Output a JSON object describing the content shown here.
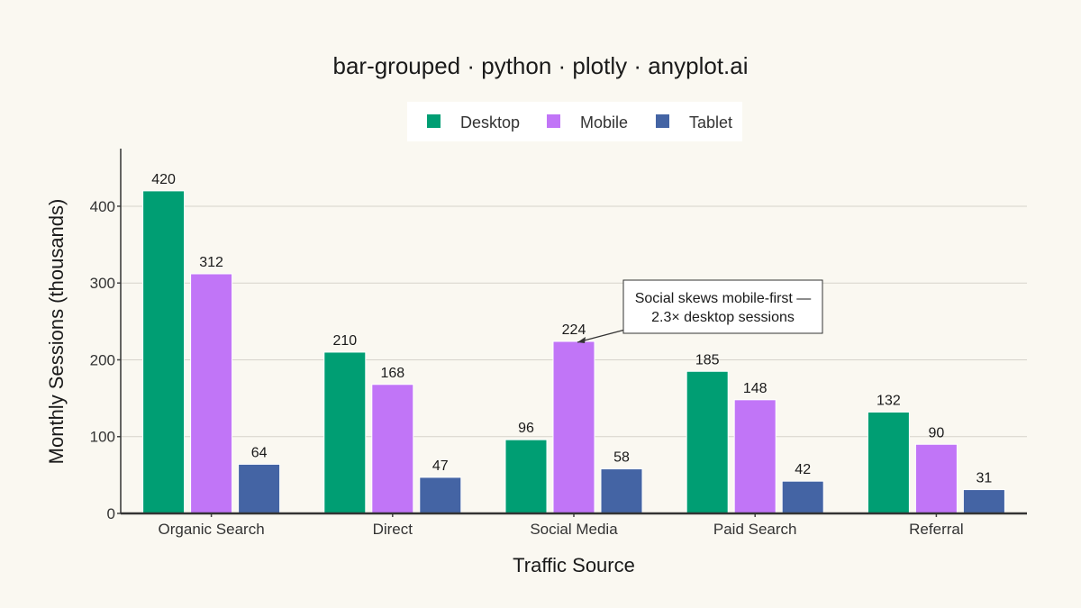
{
  "chart_data": {
    "type": "bar",
    "title": "bar-grouped · python · plotly · anyplot.ai",
    "xlabel": "Traffic Source",
    "ylabel": "Monthly Sessions (thousands)",
    "categories": [
      "Organic Search",
      "Direct",
      "Social Media",
      "Paid Search",
      "Referral"
    ],
    "series": [
      {
        "name": "Desktop",
        "color": "#009E73",
        "values": [
          420,
          210,
          96,
          185,
          132
        ]
      },
      {
        "name": "Mobile",
        "color": "#C175F7",
        "values": [
          312,
          168,
          224,
          148,
          90
        ]
      },
      {
        "name": "Tablet",
        "color": "#4464A4",
        "values": [
          64,
          47,
          58,
          42,
          31
        ]
      }
    ],
    "ylim": [
      0,
      475
    ],
    "yticks": [
      0,
      100,
      200,
      300,
      400
    ],
    "grid": true,
    "legend": "top-center",
    "annotation": {
      "lines": [
        "Social skews mobile-first —",
        "2.3× desktop sessions"
      ],
      "category_index": 2,
      "series_index": 1
    }
  }
}
